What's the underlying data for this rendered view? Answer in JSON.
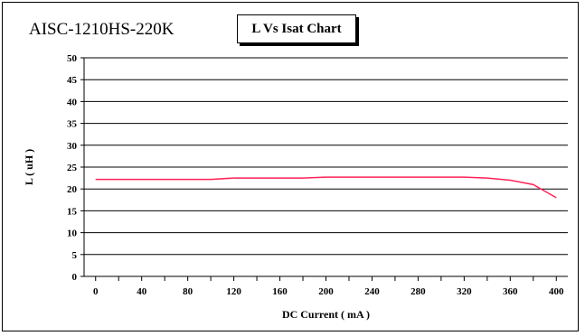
{
  "header": {
    "part_number": "AISC-1210HS-220K",
    "chart_title": "L Vs Isat Chart"
  },
  "chart_data": {
    "type": "line",
    "title": "L Vs Isat Chart",
    "xlabel": "DC Current ( mA )",
    "ylabel": "L ( uH )",
    "xlim": [
      -10,
      410
    ],
    "ylim": [
      0,
      50
    ],
    "x_ticks": [
      0,
      40,
      80,
      120,
      160,
      200,
      240,
      280,
      320,
      360,
      400
    ],
    "y_ticks": [
      0,
      5,
      10,
      15,
      20,
      25,
      30,
      35,
      40,
      45,
      50
    ],
    "grid": "horizontal",
    "series": [
      {
        "color": "#ff2255",
        "x": [
          0,
          40,
          80,
          100,
          120,
          160,
          180,
          200,
          240,
          280,
          300,
          320,
          340,
          360,
          380,
          390,
          400
        ],
        "y": [
          22.2,
          22.2,
          22.2,
          22.2,
          22.5,
          22.5,
          22.5,
          22.7,
          22.7,
          22.7,
          22.7,
          22.7,
          22.5,
          22.0,
          21.0,
          19.5,
          18.0
        ]
      }
    ]
  }
}
